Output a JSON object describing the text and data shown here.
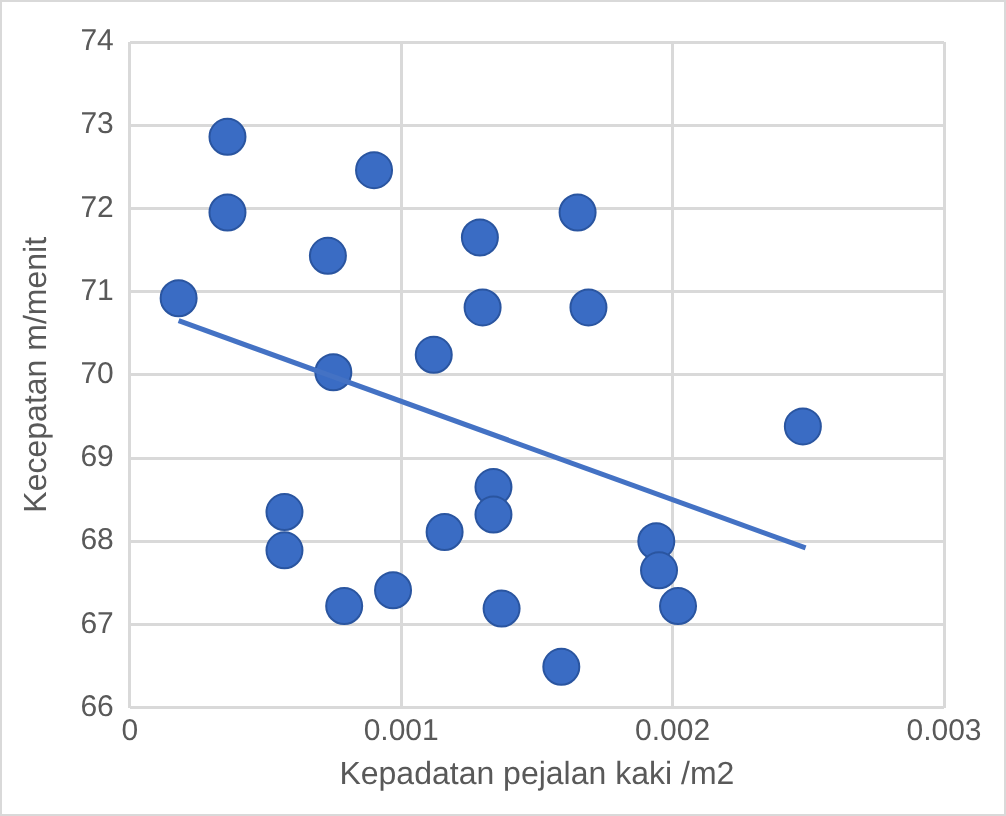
{
  "chart_data": {
    "type": "scatter",
    "xlabel": "Kepadatan pejalan kaki /m2",
    "ylabel": "Kecepatan m/menit",
    "xlim": [
      0,
      0.003
    ],
    "xticks": [
      0,
      0.001,
      0.002,
      0.003
    ],
    "ylim": [
      66,
      74
    ],
    "yticks": [
      66,
      67,
      68,
      69,
      70,
      71,
      72,
      73,
      74
    ],
    "grid": true,
    "legend": false,
    "marker": "circle",
    "series": [
      {
        "type": "scatter",
        "color": "#3a6cc4",
        "x": [
          0.00018,
          0.00036,
          0.00036,
          0.00073,
          0.0009,
          0.00075,
          0.00112,
          0.00129,
          0.0013,
          0.00165,
          0.00169,
          0.00248,
          0.00057,
          0.00057,
          0.00079,
          0.00097,
          0.00116,
          0.00134,
          0.00134,
          0.00137,
          0.00194,
          0.00195,
          0.00202,
          0.00159
        ],
        "values": [
          70.92,
          72.86,
          71.95,
          71.43,
          72.46,
          70.03,
          70.24,
          71.65,
          70.81,
          71.95,
          70.81,
          69.38,
          68.35,
          67.89,
          67.22,
          67.41,
          68.11,
          68.65,
          68.32,
          67.19,
          68.0,
          67.65,
          67.22,
          66.49
        ]
      },
      {
        "type": "line",
        "color": "#4472c4",
        "marker": "none",
        "line_style": "solid",
        "x": [
          0.00018,
          0.00249
        ],
        "values": [
          70.65,
          67.92
        ]
      }
    ]
  }
}
